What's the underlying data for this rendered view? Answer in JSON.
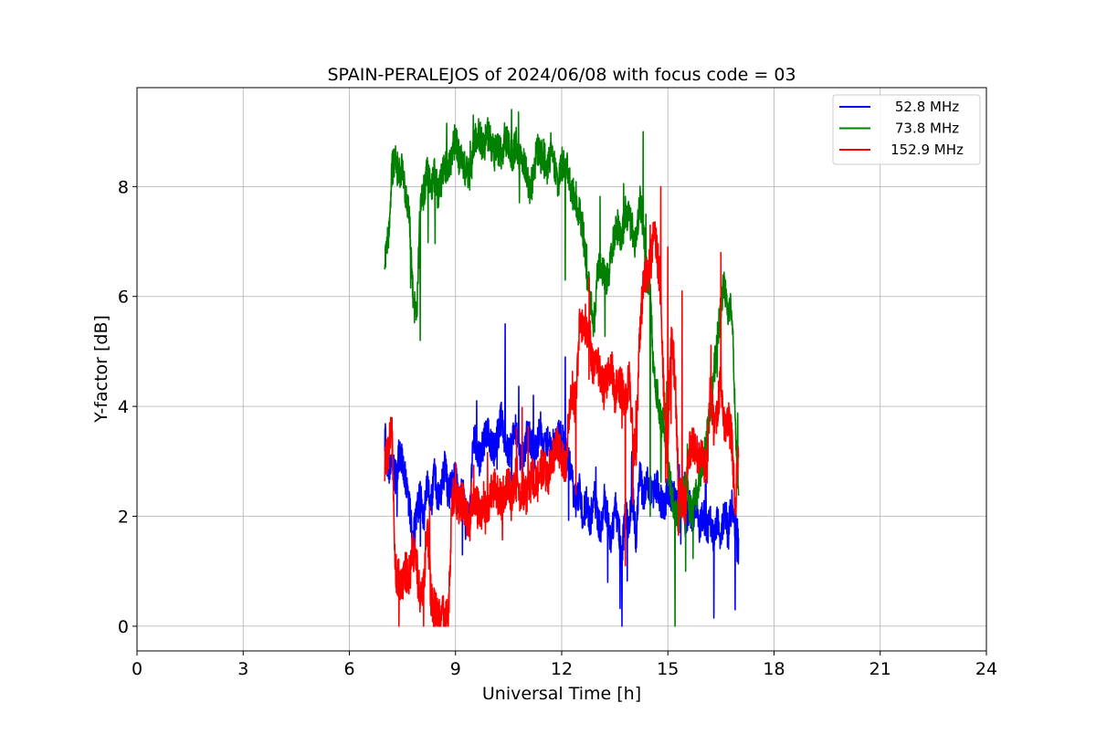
{
  "chart_data": {
    "type": "line",
    "title": "SPAIN-PERALEJOS of 2024/06/08 with focus code = 03",
    "xlabel": "Universal Time [h]",
    "ylabel": "Y-factor [dB]",
    "xlim": [
      0,
      24
    ],
    "ylim": [
      -0.45,
      9.8
    ],
    "xticks": [
      0,
      3,
      6,
      9,
      12,
      15,
      18,
      21,
      24
    ],
    "yticks": [
      0,
      2,
      4,
      6,
      8
    ],
    "grid": true,
    "legend_position": "top-right",
    "series": [
      {
        "name": "52.8 MHz",
        "color": "#0000ff",
        "x": [
          7.0,
          7.1,
          7.2,
          7.3,
          7.4,
          7.5,
          7.6,
          7.7,
          7.8,
          7.9,
          8.0,
          8.1,
          8.2,
          8.3,
          8.4,
          8.5,
          8.6,
          8.7,
          8.8,
          8.9,
          9.0,
          9.1,
          9.2,
          9.3,
          9.4,
          9.5,
          9.6,
          9.7,
          9.8,
          9.9,
          10.0,
          10.1,
          10.2,
          10.3,
          10.4,
          10.5,
          10.6,
          10.7,
          10.8,
          10.9,
          11.0,
          11.1,
          11.2,
          11.3,
          11.4,
          11.5,
          11.6,
          11.7,
          11.8,
          11.9,
          12.0,
          12.1,
          12.2,
          12.3,
          12.4,
          12.5,
          12.6,
          12.7,
          12.8,
          12.9,
          13.0,
          13.1,
          13.2,
          13.3,
          13.4,
          13.5,
          13.6,
          13.7,
          13.8,
          13.9,
          14.0,
          14.1,
          14.2,
          14.3,
          14.4,
          14.5,
          14.6,
          14.7,
          14.8,
          14.9,
          15.0,
          15.1,
          15.2,
          15.3,
          15.4,
          15.5,
          15.6,
          15.7,
          15.8,
          15.9,
          16.0,
          16.1,
          16.2,
          16.3,
          16.4,
          16.5,
          16.6,
          16.7,
          16.8,
          16.9,
          17.0
        ],
        "y": [
          3.5,
          2.8,
          3.0,
          2.7,
          3.1,
          3.0,
          2.6,
          2.2,
          1.6,
          2.0,
          2.4,
          1.9,
          2.6,
          2.1,
          2.8,
          2.3,
          2.5,
          2.9,
          2.4,
          2.6,
          2.8,
          2.2,
          2.5,
          1.8,
          2.1,
          3.5,
          3.2,
          3.0,
          3.4,
          3.6,
          3.3,
          3.2,
          3.5,
          3.8,
          3.4,
          3.1,
          3.3,
          3.6,
          3.2,
          3.0,
          3.4,
          3.5,
          3.1,
          3.3,
          3.6,
          3.2,
          3.4,
          3.1,
          3.3,
          3.5,
          3.4,
          3.2,
          3.0,
          2.6,
          2.2,
          2.5,
          2.0,
          2.3,
          1.8,
          2.4,
          2.1,
          1.7,
          2.3,
          2.0,
          1.5,
          2.2,
          1.9,
          1.3,
          2.1,
          1.8,
          2.4,
          1.6,
          2.8,
          2.3,
          2.6,
          2.5,
          2.4,
          2.6,
          2.3,
          2.2,
          2.5,
          2.4,
          2.3,
          2.1,
          2.6,
          1.9,
          2.2,
          2.0,
          2.3,
          1.8,
          2.1,
          1.7,
          2.0,
          1.5,
          1.9,
          1.6,
          2.1,
          1.8,
          2.2,
          1.9,
          1.7
        ],
        "peaks": [
          [
            10.4,
            5.5
          ],
          [
            12.1,
            4.9
          ],
          [
            9.6,
            4.1
          ],
          [
            11.2,
            4.2
          ],
          [
            13.7,
            0.0
          ],
          [
            16.3,
            0.15
          ],
          [
            16.9,
            0.3
          ],
          [
            13.3,
            0.8
          ]
        ]
      },
      {
        "name": "73.8 MHz",
        "color": "#008000",
        "x": [
          7.0,
          7.1,
          7.2,
          7.3,
          7.4,
          7.5,
          7.6,
          7.7,
          7.8,
          7.9,
          8.0,
          8.1,
          8.2,
          8.3,
          8.4,
          8.5,
          8.6,
          8.7,
          8.8,
          8.9,
          9.0,
          9.1,
          9.2,
          9.3,
          9.4,
          9.5,
          9.6,
          9.7,
          9.8,
          9.9,
          10.0,
          10.1,
          10.2,
          10.3,
          10.4,
          10.5,
          10.6,
          10.7,
          10.8,
          10.9,
          11.0,
          11.1,
          11.2,
          11.3,
          11.4,
          11.5,
          11.6,
          11.7,
          11.8,
          11.9,
          12.0,
          12.1,
          12.2,
          12.3,
          12.4,
          12.5,
          12.6,
          12.7,
          12.8,
          12.9,
          13.0,
          13.1,
          13.2,
          13.3,
          13.4,
          13.5,
          13.6,
          13.7,
          13.8,
          13.9,
          14.0,
          14.1,
          14.2,
          14.3,
          14.4,
          14.5,
          14.6,
          14.7,
          14.8,
          14.9,
          15.0,
          15.1,
          15.2,
          15.3,
          15.4,
          15.5,
          15.6,
          15.7,
          15.8,
          15.9,
          16.0,
          16.1,
          16.2,
          16.3,
          16.4,
          16.5,
          16.6,
          16.7,
          16.8,
          16.9,
          17.0
        ],
        "y": [
          6.8,
          7.0,
          8.3,
          8.5,
          8.2,
          8.4,
          7.8,
          7.4,
          6.0,
          5.6,
          7.6,
          7.9,
          8.3,
          8.0,
          8.2,
          7.9,
          8.1,
          8.4,
          8.3,
          8.6,
          8.9,
          8.5,
          8.4,
          8.3,
          8.2,
          8.6,
          9.0,
          8.9,
          8.7,
          9.0,
          8.8,
          8.6,
          8.7,
          8.6,
          8.9,
          8.7,
          8.5,
          8.8,
          8.6,
          8.5,
          8.3,
          7.9,
          8.2,
          8.7,
          8.5,
          8.6,
          8.3,
          8.7,
          8.4,
          8.1,
          8.4,
          8.5,
          8.2,
          7.9,
          7.8,
          7.5,
          7.2,
          6.5,
          6.0,
          5.4,
          6.3,
          6.6,
          6.4,
          6.3,
          6.8,
          7.1,
          7.3,
          7.0,
          7.6,
          7.4,
          7.2,
          6.9,
          7.8,
          7.3,
          6.4,
          6.2,
          4.5,
          4.2,
          3.8,
          3.6,
          3.0,
          2.4,
          2.2,
          2.0,
          2.4,
          2.6,
          2.2,
          2.1,
          2.4,
          2.8,
          3.0,
          3.4,
          4.0,
          4.6,
          5.2,
          5.8,
          6.3,
          5.5,
          5.9,
          3.8,
          2.6
        ],
        "peaks": [
          [
            9.5,
            9.3
          ],
          [
            14.3,
            9.0
          ],
          [
            8.0,
            5.2
          ],
          [
            12.1,
            6.3
          ],
          [
            15.2,
            0.0
          ],
          [
            15.5,
            1.0
          ],
          [
            14.5,
            2.0
          ],
          [
            14.8,
            2.8
          ]
        ]
      },
      {
        "name": "152.9 MHz",
        "color": "#ff0000",
        "x": [
          7.0,
          7.1,
          7.2,
          7.3,
          7.4,
          7.5,
          7.6,
          7.7,
          7.8,
          7.9,
          8.0,
          8.1,
          8.2,
          8.3,
          8.4,
          8.5,
          8.6,
          8.7,
          8.8,
          8.9,
          9.0,
          9.1,
          9.2,
          9.3,
          9.4,
          9.5,
          9.6,
          9.7,
          9.8,
          9.9,
          10.0,
          10.1,
          10.2,
          10.3,
          10.4,
          10.5,
          10.6,
          10.7,
          10.8,
          10.9,
          11.0,
          11.1,
          11.2,
          11.3,
          11.4,
          11.5,
          11.6,
          11.7,
          11.8,
          11.9,
          12.0,
          12.1,
          12.2,
          12.3,
          12.4,
          12.5,
          12.6,
          12.7,
          12.8,
          12.9,
          13.0,
          13.1,
          13.2,
          13.3,
          13.4,
          13.5,
          13.6,
          13.7,
          13.8,
          13.9,
          14.0,
          14.1,
          14.2,
          14.3,
          14.4,
          14.5,
          14.6,
          14.7,
          14.8,
          14.9,
          15.0,
          15.1,
          15.2,
          15.3,
          15.4,
          15.5,
          15.6,
          15.7,
          15.8,
          15.9,
          16.0,
          16.1,
          16.2,
          16.3,
          16.4,
          16.5,
          16.6,
          16.7,
          16.8,
          16.9,
          17.0
        ],
        "y": [
          3.0,
          3.2,
          3.6,
          1.0,
          0.9,
          0.8,
          1.0,
          0.9,
          1.4,
          1.1,
          0.5,
          0.8,
          1.9,
          0.6,
          0.3,
          0.2,
          0.3,
          0.2,
          0.2,
          2.3,
          2.4,
          2.2,
          2.3,
          2.0,
          1.9,
          2.1,
          2.2,
          2.0,
          2.3,
          2.1,
          2.4,
          2.6,
          2.4,
          2.3,
          2.5,
          2.6,
          2.4,
          2.7,
          2.2,
          2.5,
          2.4,
          2.6,
          2.7,
          2.6,
          2.8,
          2.9,
          2.7,
          3.0,
          3.2,
          3.3,
          3.1,
          2.8,
          3.7,
          4.3,
          4.0,
          5.5,
          5.4,
          5.3,
          5.2,
          4.6,
          4.9,
          4.5,
          4.3,
          4.6,
          4.8,
          4.2,
          4.4,
          4.3,
          4.1,
          4.5,
          3.6,
          3.0,
          5.2,
          6.2,
          6.4,
          6.5,
          7.2,
          6.8,
          6.1,
          3.9,
          3.5,
          5.2,
          4.6,
          2.5,
          2.3,
          2.2,
          3.2,
          3.3,
          3.2,
          3.1,
          3.0,
          2.8,
          4.5,
          3.5,
          4.0,
          4.5,
          3.6,
          3.8,
          3.4,
          2.2,
          3.1
        ],
        "peaks": [
          [
            14.8,
            8.0
          ],
          [
            8.1,
            0.0
          ],
          [
            14.5,
            7.3
          ],
          [
            16.5,
            6.8
          ],
          [
            15.0,
            6.9
          ],
          [
            15.4,
            6.1
          ],
          [
            13.8,
            1.1
          ],
          [
            12.4,
            2.4
          ]
        ]
      }
    ]
  }
}
